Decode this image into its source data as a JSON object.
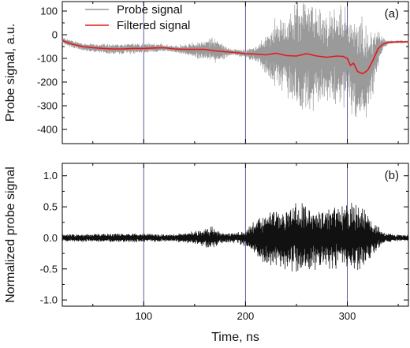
{
  "chart_data": [
    {
      "id": "a",
      "type": "line",
      "panel_label": "(a)",
      "ylabel": "Probe signal, a.u.",
      "xlabel": "",
      "xlim": [
        20,
        360
      ],
      "ylim": [
        -460,
        140
      ],
      "xticks": [
        100,
        200,
        300
      ],
      "yticks": [
        100,
        0,
        -100,
        -200,
        -300,
        -400
      ],
      "vertical_lines": [
        100,
        200,
        300
      ],
      "legend_position": "top-left",
      "series": [
        {
          "name": "Probe signal",
          "color": "#9a9a9a",
          "style": "noisy",
          "envelope_x": [
            20,
            60,
            100,
            130,
            150,
            170,
            185,
            200,
            215,
            225,
            240,
            255,
            265,
            280,
            295,
            305,
            315,
            325,
            333,
            340,
            360
          ],
          "envelope_amp": [
            12,
            18,
            20,
            12,
            30,
            50,
            14,
            14,
            45,
            110,
            170,
            230,
            220,
            180,
            200,
            190,
            210,
            140,
            40,
            6,
            4
          ]
        },
        {
          "name": "Filtered signal",
          "color": "#e41a1c",
          "x": [
            20,
            30,
            40,
            50,
            60,
            70,
            80,
            90,
            100,
            110,
            120,
            130,
            140,
            150,
            160,
            170,
            180,
            190,
            200,
            210,
            220,
            230,
            240,
            250,
            260,
            270,
            280,
            290,
            296,
            300,
            303,
            306,
            310,
            315,
            320,
            325,
            330,
            335,
            340,
            350,
            360
          ],
          "y": [
            -25,
            -40,
            -50,
            -55,
            -58,
            -60,
            -60,
            -58,
            -58,
            -56,
            -55,
            -60,
            -62,
            -62,
            -62,
            -68,
            -72,
            -75,
            -80,
            -82,
            -85,
            -78,
            -88,
            -90,
            -80,
            -90,
            -95,
            -90,
            -92,
            -100,
            -130,
            -120,
            -155,
            -165,
            -150,
            -110,
            -60,
            -40,
            -32,
            -30,
            -30
          ]
        }
      ]
    },
    {
      "id": "b",
      "type": "line",
      "panel_label": "(b)",
      "ylabel": "Normalized probe signal",
      "xlabel": "Time, ns",
      "xlim": [
        20,
        360
      ],
      "ylim": [
        -1.1,
        1.2
      ],
      "xticks": [
        100,
        200,
        300
      ],
      "yticks": [
        1.0,
        0.5,
        0.0,
        -0.5,
        -1.0
      ],
      "vertical_lines": [
        100,
        200,
        300
      ],
      "series": [
        {
          "name": "",
          "color": "#111111",
          "style": "noisy",
          "envelope_x": [
            20,
            60,
            100,
            130,
            150,
            165,
            175,
            190,
            200,
            210,
            225,
            240,
            255,
            265,
            280,
            295,
            305,
            315,
            325,
            335,
            345,
            360
          ],
          "envelope_amp": [
            0.05,
            0.06,
            0.06,
            0.05,
            0.09,
            0.17,
            0.08,
            0.07,
            0.12,
            0.3,
            0.38,
            0.46,
            0.5,
            0.48,
            0.42,
            0.46,
            0.5,
            0.45,
            0.25,
            0.08,
            0.05,
            0.04
          ]
        }
      ]
    }
  ]
}
